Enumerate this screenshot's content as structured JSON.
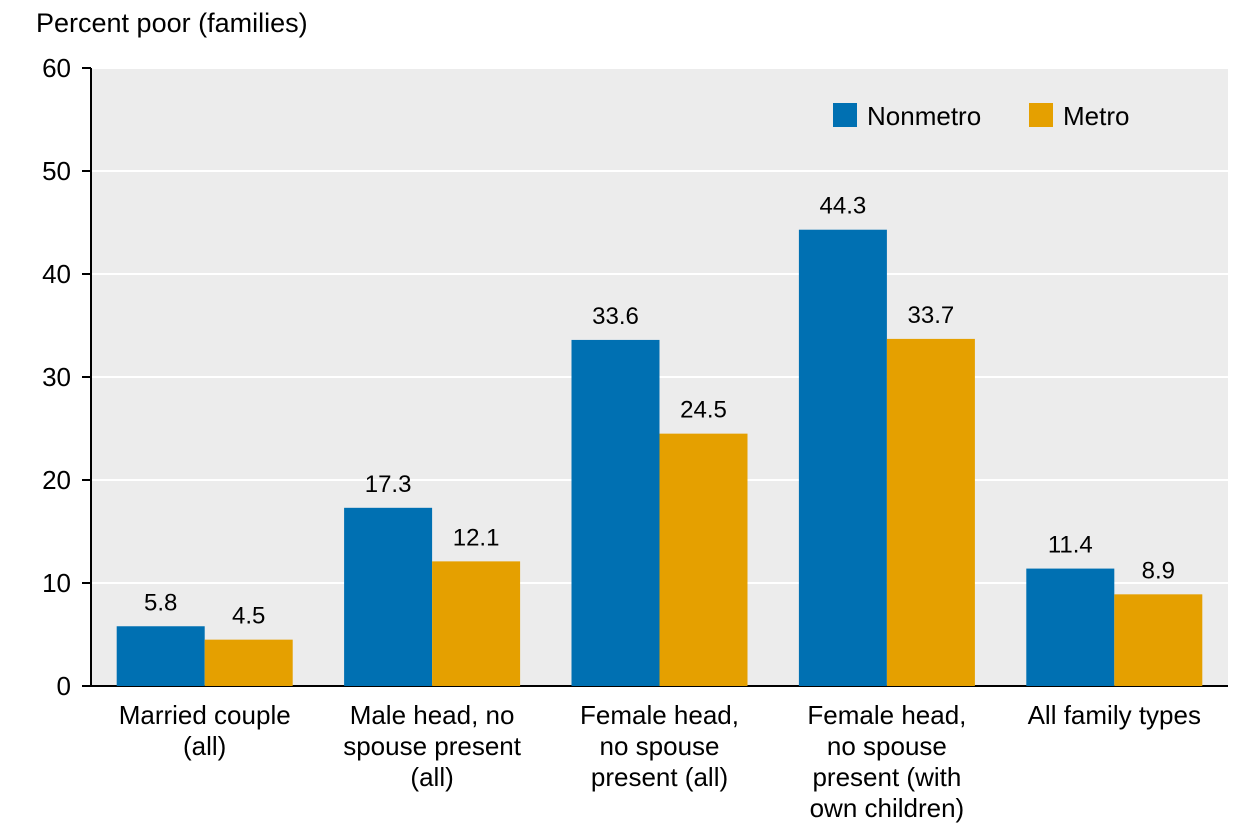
{
  "chart_data": {
    "type": "bar",
    "ylabel": "Percent poor (families)",
    "ylim": [
      0,
      60
    ],
    "yticks": [
      0,
      10,
      20,
      30,
      40,
      50,
      60
    ],
    "grid": true,
    "legend_position": "top-right",
    "categories": [
      [
        "Married couple",
        "(all)"
      ],
      [
        "Male head, no",
        "spouse present",
        "(all)"
      ],
      [
        "Female head,",
        "no spouse",
        "present (all)"
      ],
      [
        "Female head,",
        "no spouse",
        "present (with",
        "own children)"
      ],
      [
        "All family types"
      ]
    ],
    "series": [
      {
        "name": "Nonmetro",
        "color": "#0070b2",
        "values": [
          5.8,
          17.3,
          33.6,
          44.3,
          11.4
        ],
        "labels": [
          "5.8",
          "17.3",
          "33.6",
          "44.3",
          "11.4"
        ]
      },
      {
        "name": "Metro",
        "color": "#e5a000",
        "values": [
          4.5,
          12.1,
          24.5,
          33.7,
          8.9
        ],
        "labels": [
          "4.5",
          "12.1",
          "24.5",
          "33.7",
          "8.9"
        ]
      }
    ]
  }
}
